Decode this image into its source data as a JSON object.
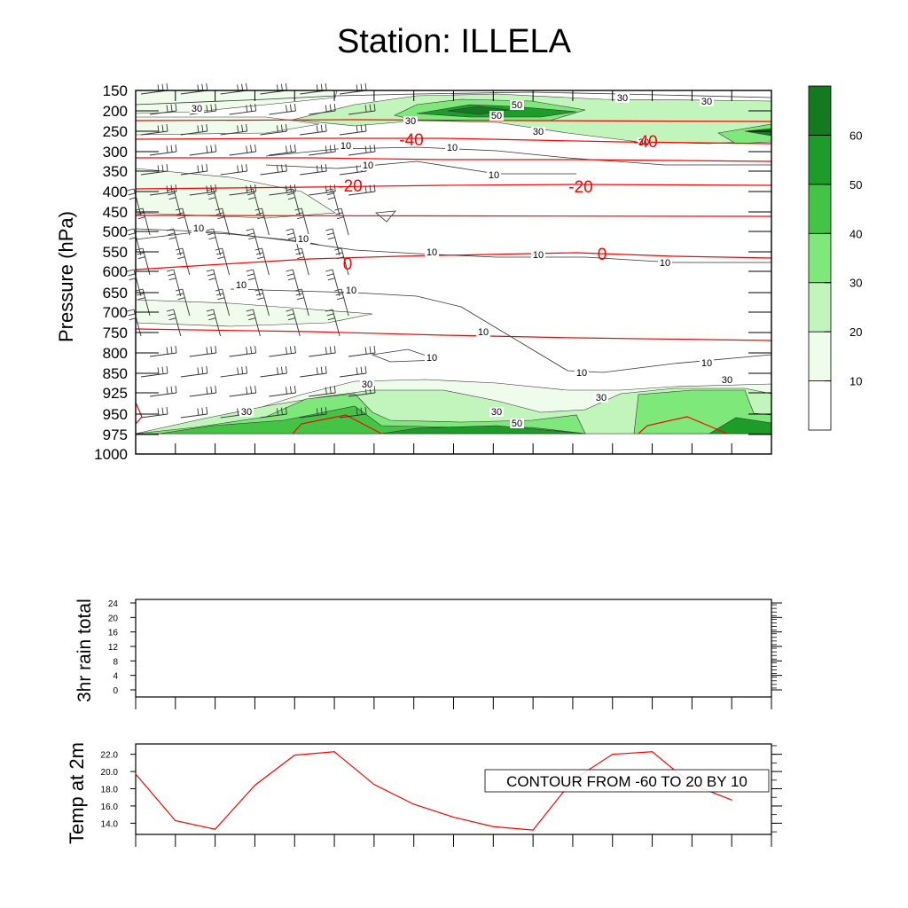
{
  "title": "Station: ILLELA",
  "chart_data": [
    {
      "type": "contour",
      "name": "time-pressure cross section",
      "ylabel": "Pressure (hPa)",
      "y_ticks": [
        150,
        200,
        250,
        300,
        350,
        400,
        450,
        500,
        550,
        600,
        650,
        700,
        750,
        800,
        850,
        925,
        950,
        975,
        1000
      ],
      "x_ticks_count": 17,
      "shaded_field": {
        "colorbar_levels": [
          10,
          20,
          30,
          40,
          50,
          60
        ],
        "colors": [
          "#ffffff",
          "#effcec",
          "#c2f5bb",
          "#7ee87a",
          "#44c444",
          "#1e9c2a",
          "#147a20"
        ],
        "contour_labels": [
          "30",
          "30",
          "30",
          "30",
          "30",
          "30",
          "30",
          "50",
          "50",
          "50",
          "10",
          "10",
          "10",
          "10",
          "10",
          "10",
          "10",
          "10",
          "10",
          "10",
          "10",
          "10"
        ]
      },
      "temperature_contours": {
        "color": "#ff0000",
        "labels": [
          "-40",
          "-40",
          "-20",
          "-20",
          "0",
          "0"
        ]
      },
      "wind_barbs": true
    },
    {
      "type": "line",
      "name": "rain",
      "ylabel": "3hr rain total",
      "y_ticks": [
        0,
        4,
        8,
        12,
        16,
        20,
        24
      ],
      "ylim": [
        0,
        24
      ],
      "values": []
    },
    {
      "type": "line",
      "name": "temp2m",
      "ylabel": "Temp at 2m",
      "y_ticks": [
        "14.0",
        "16.0",
        "18.0",
        "20.0",
        "22.0"
      ],
      "ylim": [
        12.7,
        23.2
      ],
      "x": [
        0,
        1,
        2,
        3,
        4,
        5,
        6,
        7,
        8,
        9,
        10,
        11,
        12,
        13,
        14,
        15
      ],
      "values": [
        19.7,
        14.3,
        13.3,
        18.4,
        21.9,
        22.3,
        18.5,
        16.2,
        14.7,
        13.6,
        13.2,
        19.0,
        22.0,
        22.3,
        18.5,
        16.7
      ],
      "color": "#ff0000",
      "annotation": "CONTOUR FROM -60 TO 20 BY 10"
    }
  ]
}
